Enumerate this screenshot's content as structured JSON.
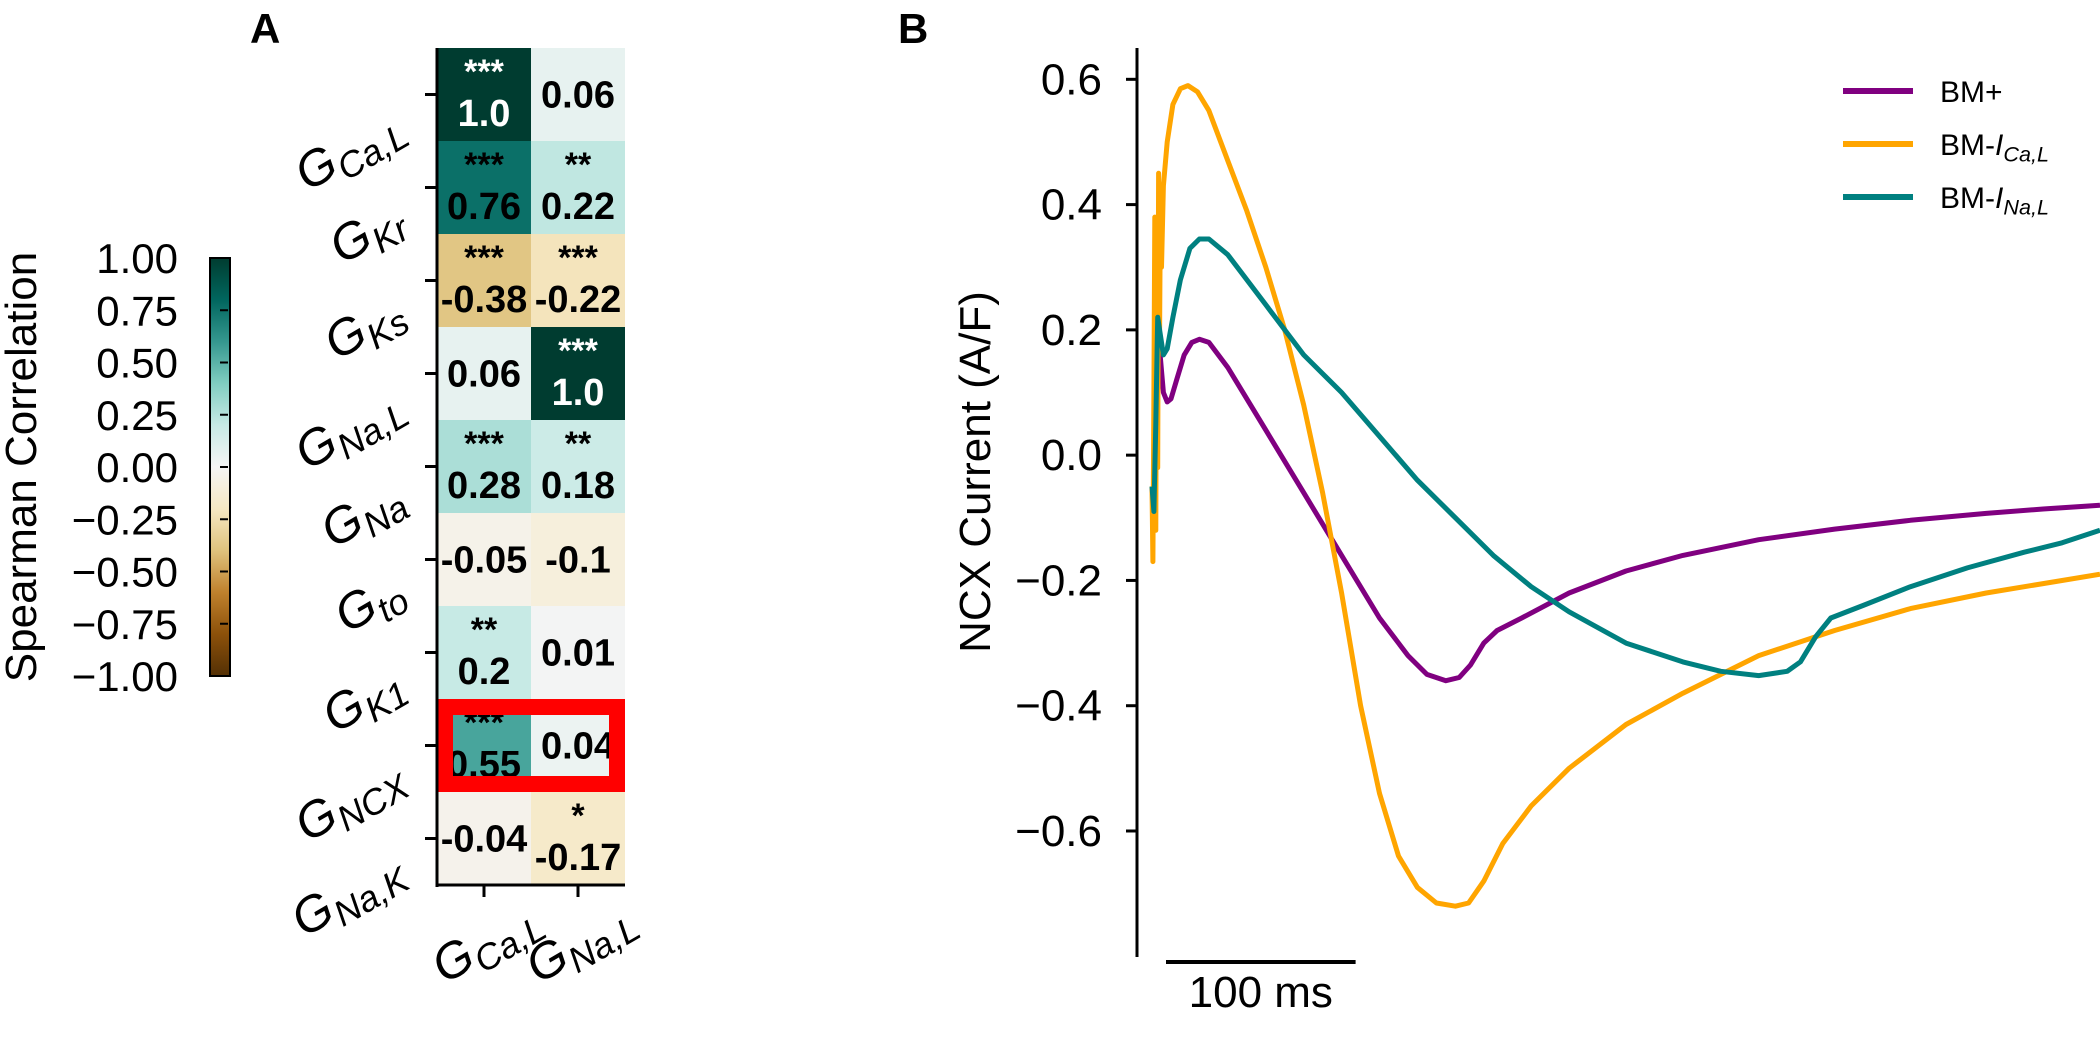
{
  "chart_data": [
    {
      "panel_label": "A",
      "type": "heatmap",
      "rows": [
        "G_{Ca,L}",
        "G_{Kr}",
        "G_{Ks}",
        "G_{Na,L}",
        "G_{Na}",
        "G_{to}",
        "G_{K1}",
        "G_{NCX}",
        "G_{Na,K}"
      ],
      "columns": [
        "G_{Ca,L}",
        "G_{Na,L}"
      ],
      "values": [
        [
          1.0,
          0.06
        ],
        [
          0.76,
          0.22
        ],
        [
          -0.38,
          -0.22
        ],
        [
          0.06,
          1.0
        ],
        [
          0.28,
          0.18
        ],
        [
          -0.05,
          -0.1
        ],
        [
          0.2,
          0.01
        ],
        [
          0.55,
          0.04
        ],
        [
          -0.04,
          -0.17
        ]
      ],
      "labels": [
        [
          "1.0",
          "0.06"
        ],
        [
          "0.76",
          "0.22"
        ],
        [
          "-0.38",
          "-0.22"
        ],
        [
          "0.06",
          "1.0"
        ],
        [
          "0.28",
          "0.18"
        ],
        [
          "-0.05",
          "-0.1"
        ],
        [
          "0.2",
          "0.01"
        ],
        [
          "0.55",
          "0.04"
        ],
        [
          "-0.04",
          "-0.17"
        ]
      ],
      "significance": [
        [
          "***",
          ""
        ],
        [
          "***",
          "**"
        ],
        [
          "***",
          "***"
        ],
        [
          "",
          "***"
        ],
        [
          "***",
          "**"
        ],
        [
          "",
          ""
        ],
        [
          "**",
          ""
        ],
        [
          "***",
          ""
        ],
        [
          "",
          "*"
        ]
      ],
      "highlighted_row": "G_{NCX}",
      "highlight_color": "#ff0000",
      "colorbar": {
        "label": "Spearman Correlation",
        "ticks": [
          "1.00",
          "0.75",
          "0.50",
          "0.25",
          "0.00",
          "−0.25",
          "−0.50",
          "−0.75",
          "−1.00"
        ],
        "tick_values": [
          1,
          0.75,
          0.5,
          0.25,
          0,
          -0.25,
          -0.5,
          -0.75,
          -1
        ],
        "range": [
          -1,
          1
        ],
        "colormap": "BrBG",
        "stops": [
          "#543005",
          "#8c510a",
          "#bf812d",
          "#dfc27d",
          "#f6e8c3",
          "#f5f5f5",
          "#c7eae5",
          "#80cdc1",
          "#35978f",
          "#01665e",
          "#003c30"
        ]
      }
    },
    {
      "panel_label": "B",
      "type": "line",
      "ylabel": "NCX Current (A/F)",
      "yticks": [
        "0.6",
        "0.4",
        "0.2",
        "0.0",
        "−0.2",
        "−0.4",
        "−0.6"
      ],
      "ytick_values": [
        0.6,
        0.4,
        0.2,
        0.0,
        -0.2,
        -0.4,
        -0.6
      ],
      "ylim": [
        -0.79,
        0.65
      ],
      "x_unit": "ms",
      "xlim": [
        0,
        500
      ],
      "scale_bar": {
        "length_ms": 100,
        "label": "100 ms"
      },
      "legend_position": "top-right",
      "series": [
        {
          "name": "BM+",
          "color": "#800080",
          "points": [
            [
              0,
              -0.05
            ],
            [
              1,
              -0.08
            ],
            [
              2,
              0.04
            ],
            [
              3,
              0.2
            ],
            [
              4,
              0.17
            ],
            [
              6,
              0.1
            ],
            [
              8,
              0.085
            ],
            [
              10,
              0.09
            ],
            [
              13,
              0.12
            ],
            [
              17,
              0.16
            ],
            [
              21,
              0.18
            ],
            [
              25,
              0.185
            ],
            [
              30,
              0.18
            ],
            [
              40,
              0.14
            ],
            [
              60,
              0.04
            ],
            [
              80,
              -0.06
            ],
            [
              100,
              -0.16
            ],
            [
              120,
              -0.26
            ],
            [
              135,
              -0.32
            ],
            [
              145,
              -0.35
            ],
            [
              155,
              -0.36
            ],
            [
              162,
              -0.355
            ],
            [
              168,
              -0.335
            ],
            [
              175,
              -0.3
            ],
            [
              182,
              -0.28
            ],
            [
              195,
              -0.26
            ],
            [
              220,
              -0.22
            ],
            [
              250,
              -0.185
            ],
            [
              280,
              -0.16
            ],
            [
              320,
              -0.135
            ],
            [
              360,
              -0.118
            ],
            [
              400,
              -0.104
            ],
            [
              440,
              -0.093
            ],
            [
              470,
              -0.086
            ],
            [
              500,
              -0.08
            ]
          ]
        },
        {
          "name": "BM-",
          "name_subscript": "Ca,L",
          "color": "#ffa500",
          "points": [
            [
              0,
              -0.05
            ],
            [
              0.5,
              -0.17
            ],
            [
              1,
              0.1
            ],
            [
              1.5,
              0.38
            ],
            [
              2,
              -0.12
            ],
            [
              2.5,
              0.35
            ],
            [
              3,
              -0.02
            ],
            [
              3.5,
              0.45
            ],
            [
              4,
              0.2
            ],
            [
              4.5,
              0.42
            ],
            [
              5,
              0.3
            ],
            [
              6,
              0.43
            ],
            [
              8,
              0.5
            ],
            [
              11,
              0.56
            ],
            [
              15,
              0.585
            ],
            [
              19,
              0.59
            ],
            [
              24,
              0.58
            ],
            [
              30,
              0.55
            ],
            [
              40,
              0.47
            ],
            [
              50,
              0.39
            ],
            [
              60,
              0.3
            ],
            [
              70,
              0.2
            ],
            [
              80,
              0.08
            ],
            [
              90,
              -0.06
            ],
            [
              100,
              -0.22
            ],
            [
              110,
              -0.4
            ],
            [
              120,
              -0.54
            ],
            [
              130,
              -0.64
            ],
            [
              140,
              -0.69
            ],
            [
              150,
              -0.715
            ],
            [
              160,
              -0.72
            ],
            [
              167,
              -0.715
            ],
            [
              175,
              -0.68
            ],
            [
              185,
              -0.62
            ],
            [
              200,
              -0.56
            ],
            [
              220,
              -0.5
            ],
            [
              250,
              -0.43
            ],
            [
              280,
              -0.38
            ],
            [
              320,
              -0.32
            ],
            [
              360,
              -0.28
            ],
            [
              400,
              -0.245
            ],
            [
              440,
              -0.22
            ],
            [
              470,
              -0.205
            ],
            [
              500,
              -0.19
            ]
          ]
        },
        {
          "name": "BM-",
          "name_subscript": "Na,L",
          "color": "#008080",
          "points": [
            [
              0,
              -0.05
            ],
            [
              1,
              -0.09
            ],
            [
              2,
              0.05
            ],
            [
              3,
              0.22
            ],
            [
              4,
              0.2
            ],
            [
              6,
              0.16
            ],
            [
              8,
              0.17
            ],
            [
              11,
              0.22
            ],
            [
              15,
              0.28
            ],
            [
              20,
              0.33
            ],
            [
              25,
              0.345
            ],
            [
              30,
              0.345
            ],
            [
              40,
              0.32
            ],
            [
              60,
              0.24
            ],
            [
              80,
              0.16
            ],
            [
              100,
              0.1
            ],
            [
              120,
              0.03
            ],
            [
              140,
              -0.04
            ],
            [
              160,
              -0.1
            ],
            [
              180,
              -0.16
            ],
            [
              200,
              -0.21
            ],
            [
              220,
              -0.25
            ],
            [
              250,
              -0.3
            ],
            [
              280,
              -0.33
            ],
            [
              300,
              -0.345
            ],
            [
              320,
              -0.352
            ],
            [
              335,
              -0.345
            ],
            [
              342,
              -0.33
            ],
            [
              350,
              -0.29
            ],
            [
              358,
              -0.26
            ],
            [
              375,
              -0.24
            ],
            [
              400,
              -0.21
            ],
            [
              430,
              -0.18
            ],
            [
              460,
              -0.155
            ],
            [
              480,
              -0.14
            ],
            [
              500,
              -0.12
            ]
          ]
        }
      ]
    }
  ]
}
